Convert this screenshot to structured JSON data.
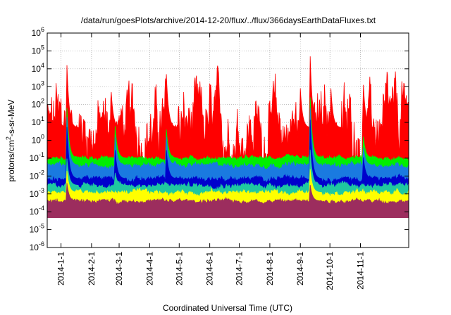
{
  "chart_data": {
    "type": "area",
    "title": "/data/run/goesPlots/archive/2014-12-20/flux/../flux/366daysEarthDataFluxes.txt",
    "xlabel": "Coordinated Universal Time (UTC)",
    "ylabel": "protons/cm²-s-sr-MeV",
    "yscale": "log",
    "ylim": [
      1e-06,
      1000000.0
    ],
    "xlim": [
      "2013-12-18",
      "2014-12-20"
    ],
    "grid": true,
    "legend": "none",
    "y_ticks": [
      {
        "exp": "-6",
        "value": 1e-06
      },
      {
        "exp": "-5",
        "value": 1e-05
      },
      {
        "exp": "-4",
        "value": 0.0001
      },
      {
        "exp": "-3",
        "value": 0.001
      },
      {
        "exp": "-2",
        "value": 0.01
      },
      {
        "exp": "-1",
        "value": 0.1
      },
      {
        "exp": "0",
        "value": 1
      },
      {
        "exp": "1",
        "value": 10.0
      },
      {
        "exp": "2",
        "value": 100.0
      },
      {
        "exp": "3",
        "value": 1000.0
      },
      {
        "exp": "4",
        "value": 10000.0
      },
      {
        "exp": "5",
        "value": 100000.0
      },
      {
        "exp": "6",
        "value": 1000000.0
      }
    ],
    "y_tick_base": "10",
    "x_ticks": [
      "2014-1-1",
      "2014-2-1",
      "2014-3-1",
      "2014-4-1",
      "2014-5-1",
      "2014-6-1",
      "2014-7-1",
      "2014-8-1",
      "2014-9-1",
      "2014-10-1",
      "2014-11-1"
    ],
    "series": [
      {
        "color": "#ff0000",
        "base": 5,
        "noise": 0.9,
        "spikes": [
          [
            "2013-12-27",
            2.5
          ],
          [
            "2014-01-07",
            3.5
          ],
          [
            "2014-02-21",
            2.0
          ],
          [
            "2014-04-18",
            3.0
          ],
          [
            "2014-09-01",
            2.2
          ],
          [
            "2014-09-11",
            4.0
          ],
          [
            "2014-10-02",
            2.2
          ],
          [
            "2014-11-04",
            2.4
          ],
          [
            "2014-12-13",
            2.6
          ]
        ]
      },
      {
        "color": "#00ee00",
        "base": 0.1,
        "noise": 0.08,
        "spikes": [
          [
            "2014-01-07",
            2.8
          ],
          [
            "2014-02-25",
            1.8
          ],
          [
            "2014-04-18",
            1.6
          ],
          [
            "2014-09-11",
            3.4
          ],
          [
            "2014-11-04",
            1.2
          ]
        ]
      },
      {
        "color": "#1a7ae0",
        "base": 0.04,
        "noise": 0.1,
        "spikes": [
          [
            "2014-01-07",
            2.7
          ],
          [
            "2014-02-25",
            1.6
          ],
          [
            "2014-04-18",
            1.6
          ],
          [
            "2014-09-11",
            3.2
          ],
          [
            "2014-11-04",
            1.0
          ]
        ]
      },
      {
        "color": "#0000cc",
        "base": 0.007,
        "noise": 0.1,
        "spikes": [
          [
            "2014-01-07",
            2.9
          ],
          [
            "2014-02-25",
            1.6
          ],
          [
            "2014-04-18",
            1.6
          ],
          [
            "2014-09-11",
            3.3
          ],
          [
            "2014-11-04",
            1.2
          ]
        ]
      },
      {
        "color": "#1fc8a0",
        "base": 0.003,
        "noise": 0.1,
        "spikes": [
          [
            "2014-01-07",
            1.5
          ],
          [
            "2014-02-25",
            0.7
          ],
          [
            "2014-09-11",
            2.0
          ]
        ]
      },
      {
        "color": "#ffff00",
        "base": 0.0012,
        "noise": 0.1,
        "spikes": [
          [
            "2014-01-07",
            1.2
          ],
          [
            "2014-09-11",
            1.3
          ]
        ]
      },
      {
        "color": "#9c2d5e",
        "base": 0.0004,
        "noise": 0.08,
        "spikes": [
          [
            "2014-01-07",
            1.0
          ],
          [
            "2014-09-11",
            0.9
          ]
        ]
      }
    ]
  }
}
